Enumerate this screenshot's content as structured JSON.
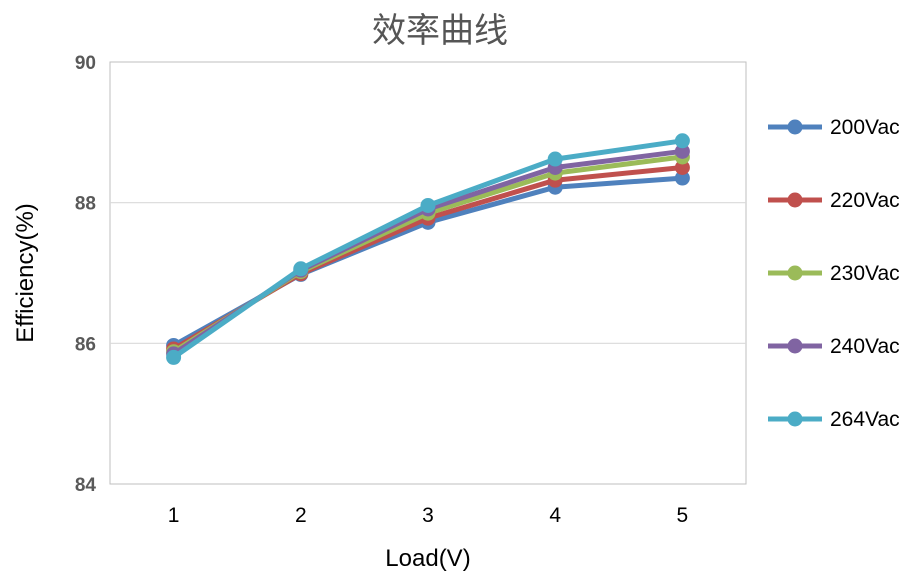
{
  "chart_data": {
    "type": "line",
    "title": "效率曲线",
    "xlabel": "Load(V)",
    "ylabel": "Efficiency(%)",
    "x": [
      1,
      2,
      3,
      4,
      5
    ],
    "x_tick_labels": [
      "1",
      "2",
      "3",
      "4",
      "5"
    ],
    "ylim": [
      84,
      90
    ],
    "y_ticks": [
      84,
      86,
      88,
      90
    ],
    "y_tick_labels": [
      "84",
      "86",
      "88",
      "90"
    ],
    "grid": true,
    "legend": "right",
    "series": [
      {
        "name": "200Vac",
        "color": "#4F81BD",
        "values": [
          85.97,
          86.98,
          87.72,
          88.22,
          88.35
        ]
      },
      {
        "name": "220Vac",
        "color": "#C0504D",
        "values": [
          85.92,
          86.99,
          87.78,
          88.32,
          88.5
        ]
      },
      {
        "name": "230Vac",
        "color": "#9BBB59",
        "values": [
          85.88,
          87.02,
          87.85,
          88.42,
          88.65
        ]
      },
      {
        "name": "240Vac",
        "color": "#8064A2",
        "values": [
          85.85,
          87.04,
          87.91,
          88.5,
          88.73
        ]
      },
      {
        "name": "264Vac",
        "color": "#4BACC6",
        "values": [
          85.8,
          87.06,
          87.96,
          88.62,
          88.88
        ]
      }
    ]
  }
}
